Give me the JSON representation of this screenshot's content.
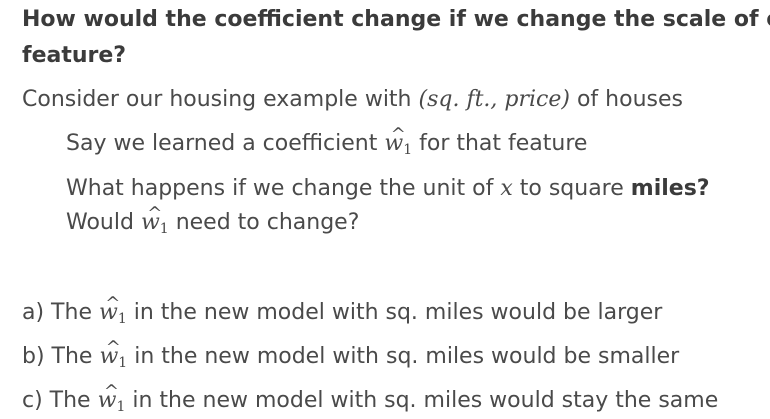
{
  "heading": {
    "line1": "How would the coefficient change if we change the scale of our",
    "line2": "feature?"
  },
  "intro": {
    "prefix": "Consider our housing example with ",
    "math": "(sq. ft., price)",
    "suffix": " of houses"
  },
  "point1": {
    "prefix": "Say we learned a coefficient ",
    "symbol": "w",
    "subscript": "1",
    "suffix": " for that feature"
  },
  "point2": {
    "prefix": "What happens if we change the unit of ",
    "var": "x",
    "middle": " to square ",
    "bold": "miles?",
    "line2_prefix": "Would ",
    "line2_suffix": " need to change?"
  },
  "options": [
    {
      "prefix": "a) The ",
      "suffix": " in the new model with sq. miles would be larger"
    },
    {
      "prefix": "b) The ",
      "suffix": " in the new model with sq. miles would be smaller"
    },
    {
      "prefix": "c) The ",
      "suffix": " in the new model with sq. miles would stay the same"
    }
  ],
  "hat_char": "^"
}
